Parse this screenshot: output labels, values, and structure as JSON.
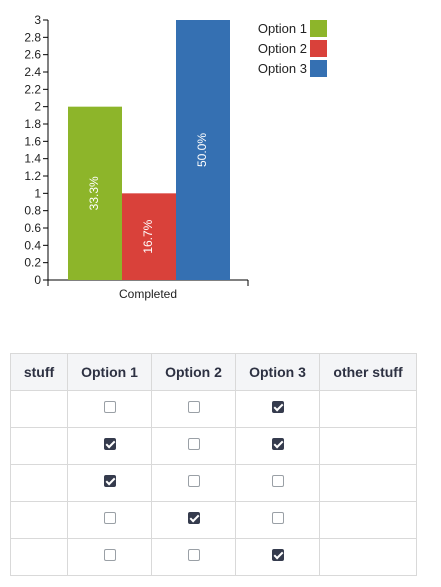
{
  "chart_data": {
    "type": "bar",
    "categories": [
      "Completed"
    ],
    "series": [
      {
        "name": "Option 1",
        "values": [
          2
        ],
        "label": "33.3%",
        "color": "#8db52a"
      },
      {
        "name": "Option 2",
        "values": [
          1
        ],
        "label": "16.7%",
        "color": "#d9413a"
      },
      {
        "name": "Option 3",
        "values": [
          3
        ],
        "label": "50.0%",
        "color": "#3570b2"
      }
    ],
    "ylim": [
      0,
      3
    ],
    "yticks": [
      "0",
      "0.2",
      "0.4",
      "0.6",
      "0.8",
      "1",
      "1.2",
      "1.4",
      "1.6",
      "1.8",
      "2",
      "2.2",
      "2.4",
      "2.6",
      "2.8",
      "3"
    ],
    "legend_position": "top-right",
    "grid": false
  },
  "table": {
    "headers": [
      "stuff",
      "Option 1",
      "Option 2",
      "Option 3",
      "other stuff"
    ],
    "rows": [
      {
        "stuff": "",
        "checks": [
          false,
          false,
          true
        ],
        "other": ""
      },
      {
        "stuff": "",
        "checks": [
          true,
          false,
          true
        ],
        "other": ""
      },
      {
        "stuff": "",
        "checks": [
          true,
          false,
          false
        ],
        "other": ""
      },
      {
        "stuff": "",
        "checks": [
          false,
          true,
          false
        ],
        "other": ""
      },
      {
        "stuff": "",
        "checks": [
          false,
          false,
          true
        ],
        "other": ""
      }
    ]
  }
}
